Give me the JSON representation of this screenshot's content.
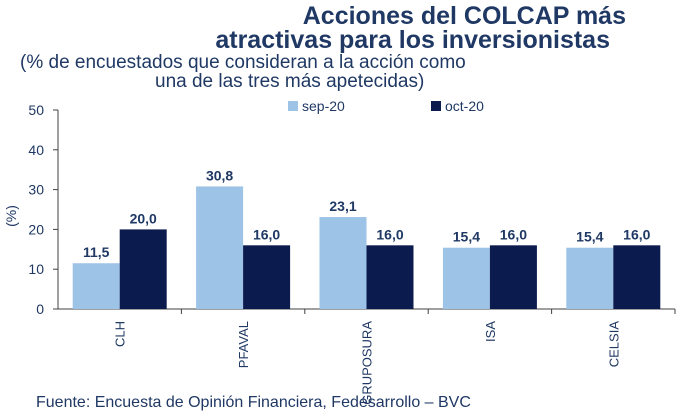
{
  "title_line1": "Acciones del COLCAP más",
  "title_line2": "atractivas para los inversionistas",
  "subtitle_line1": "(% de encuestados que consideran a la acción como",
  "subtitle_line2": "una de las tres más apetecidas)",
  "source": "Fuente: Encuesta de Opinión Financiera, Fedesarrollo – BVC",
  "colors": {
    "sep": "#9dc3e6",
    "oct": "#0c1b4d",
    "text": "#1f3864"
  },
  "chart_data": {
    "type": "bar",
    "categories": [
      "CLH",
      "PFAVAL",
      "GRUPOSURA",
      "ISA",
      "CELSIA"
    ],
    "series": [
      {
        "name": "sep-20",
        "values": [
          11.5,
          30.8,
          23.1,
          15.4,
          15.4
        ],
        "labels": [
          "11,5",
          "30,8",
          "23,1",
          "15,4",
          "15,4"
        ]
      },
      {
        "name": "oct-20",
        "values": [
          20.0,
          16.0,
          16.0,
          16.0,
          16.0
        ],
        "labels": [
          "20,0",
          "16,0",
          "16,0",
          "16,0",
          "16,0"
        ]
      }
    ],
    "ylabel": "(%)",
    "ylim": [
      0,
      50
    ],
    "yticks": [
      0,
      10,
      20,
      30,
      40,
      50
    ],
    "legend_position": "top-right",
    "grid": false
  }
}
